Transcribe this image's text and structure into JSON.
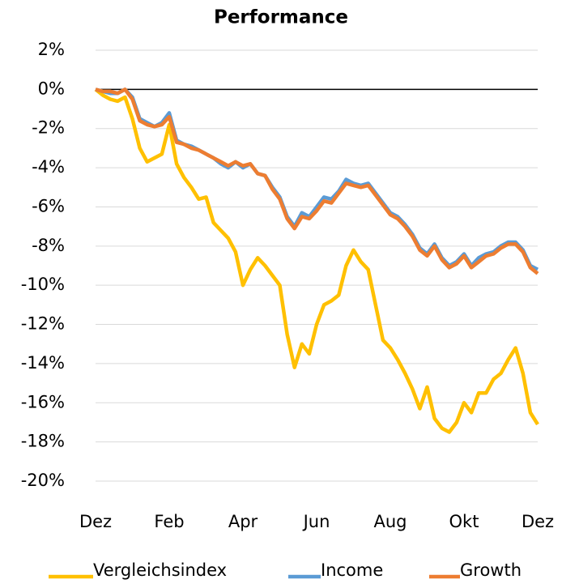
{
  "chart_data": {
    "type": "line",
    "title": "Performance",
    "categories": [
      "Dez",
      null,
      null,
      null,
      null,
      null,
      null,
      null,
      null,
      null,
      "Feb",
      null,
      null,
      null,
      null,
      null,
      null,
      null,
      null,
      null,
      "Apr",
      null,
      null,
      null,
      null,
      null,
      null,
      null,
      null,
      null,
      "Jun",
      null,
      null,
      null,
      null,
      null,
      null,
      null,
      null,
      null,
      "Aug",
      null,
      null,
      null,
      null,
      null,
      null,
      null,
      null,
      null,
      "Okt",
      null,
      null,
      null,
      null,
      null,
      null,
      null,
      null,
      null,
      "Dez"
    ],
    "series": [
      {
        "name": "Vergleichsindex",
        "color": "#FFC000",
        "values": [
          0,
          -0.3,
          -0.5,
          -0.6,
          -0.4,
          -1.5,
          -3.0,
          -3.7,
          -3.5,
          -3.3,
          -1.8,
          -3.8,
          -4.5,
          -5.0,
          -5.6,
          -5.5,
          -6.8,
          -7.2,
          -7.6,
          -8.3,
          -10.0,
          -9.2,
          -8.6,
          -9.0,
          -9.5,
          -10.0,
          -12.5,
          -14.2,
          -13.0,
          -13.5,
          -12.0,
          -11.0,
          -10.8,
          -10.5,
          -9.0,
          -8.2,
          -8.8,
          -9.2,
          -11.0,
          -12.8,
          -13.2,
          -13.8,
          -14.5,
          -15.3,
          -16.3,
          -15.2,
          -16.8,
          -17.3,
          -17.5,
          -17.0,
          -16.0,
          -16.5,
          -15.5,
          -15.5,
          -14.8,
          -14.5,
          -13.8,
          -13.2,
          -14.5,
          -16.5,
          -17.1
        ]
      },
      {
        "name": "Income",
        "color": "#5B9BD5",
        "values": [
          0,
          -0.1,
          -0.2,
          -0.2,
          0.0,
          -0.4,
          -1.5,
          -1.7,
          -1.9,
          -1.7,
          -1.2,
          -2.6,
          -2.8,
          -2.9,
          -3.1,
          -3.3,
          -3.5,
          -3.8,
          -4.0,
          -3.7,
          -4.0,
          -3.8,
          -4.3,
          -4.4,
          -5.0,
          -5.5,
          -6.5,
          -7.0,
          -6.3,
          -6.5,
          -6.0,
          -5.5,
          -5.6,
          -5.2,
          -4.6,
          -4.8,
          -4.9,
          -4.8,
          -5.3,
          -5.8,
          -6.3,
          -6.5,
          -6.9,
          -7.4,
          -8.1,
          -8.4,
          -7.9,
          -8.6,
          -9.0,
          -8.8,
          -8.4,
          -9.0,
          -8.6,
          -8.4,
          -8.3,
          -8.0,
          -7.8,
          -7.8,
          -8.2,
          -9.0,
          -9.2
        ]
      },
      {
        "name": "Growth",
        "color": "#ED7D31",
        "values": [
          0,
          -0.1,
          -0.1,
          -0.2,
          0.0,
          -0.5,
          -1.6,
          -1.8,
          -1.9,
          -1.8,
          -1.4,
          -2.7,
          -2.8,
          -3.0,
          -3.1,
          -3.3,
          -3.5,
          -3.7,
          -3.9,
          -3.7,
          -3.9,
          -3.8,
          -4.3,
          -4.4,
          -5.1,
          -5.6,
          -6.6,
          -7.1,
          -6.5,
          -6.6,
          -6.2,
          -5.7,
          -5.8,
          -5.3,
          -4.8,
          -4.9,
          -5.0,
          -4.9,
          -5.4,
          -5.9,
          -6.4,
          -6.6,
          -7.0,
          -7.5,
          -8.2,
          -8.5,
          -8.0,
          -8.7,
          -9.1,
          -8.9,
          -8.5,
          -9.1,
          -8.8,
          -8.5,
          -8.4,
          -8.1,
          -7.9,
          -7.9,
          -8.3,
          -9.1,
          -9.4
        ]
      }
    ],
    "ylim": [
      -20,
      2
    ],
    "yticks": [
      {
        "value": 2,
        "label": "2%"
      },
      {
        "value": 0,
        "label": "0%"
      },
      {
        "value": -2,
        "label": "-2%"
      },
      {
        "value": -4,
        "label": "-4%"
      },
      {
        "value": -6,
        "label": "-6%"
      },
      {
        "value": -8,
        "label": "-8%"
      },
      {
        "value": -10,
        "label": "-10%"
      },
      {
        "value": -12,
        "label": "-12%"
      },
      {
        "value": -14,
        "label": "-14%"
      },
      {
        "value": -16,
        "label": "-16%"
      },
      {
        "value": -18,
        "label": "-18%"
      },
      {
        "value": -20,
        "label": "-20%"
      }
    ],
    "grid": true,
    "legend": "bottom"
  }
}
